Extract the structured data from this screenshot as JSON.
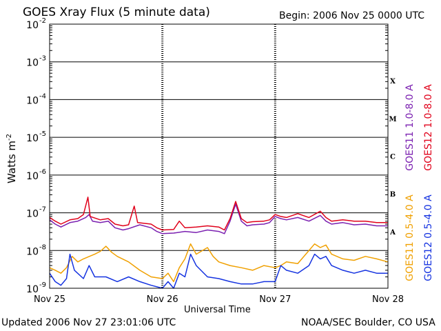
{
  "chart_data": {
    "type": "line",
    "title": "GOES Xray Flux (5 minute data)",
    "begin_label": "Begin:  2006 Nov 25 0000 UTC",
    "xlabel": "Universal Time",
    "ylabel": "Watts m",
    "ylabel_superscript": "-2",
    "y_scale": "log",
    "ylim": [
      1e-09,
      0.01
    ],
    "y_ticks": [
      {
        "base": "10",
        "exp": "-9",
        "value": 1e-09
      },
      {
        "base": "10",
        "exp": "-8",
        "value": 1e-08
      },
      {
        "base": "10",
        "exp": "-7",
        "value": 1e-07
      },
      {
        "base": "10",
        "exp": "-6",
        "value": 1e-06
      },
      {
        "base": "10",
        "exp": "-5",
        "value": 1e-05
      },
      {
        "base": "10",
        "exp": "-4",
        "value": 0.0001
      },
      {
        "base": "10",
        "exp": "-3",
        "value": 0.001
      },
      {
        "base": "10",
        "exp": "-2",
        "value": 0.01
      }
    ],
    "xlim_days": [
      0,
      3
    ],
    "x_ticks": [
      {
        "label": "Nov 25",
        "day": 0
      },
      {
        "label": "Nov 26",
        "day": 1
      },
      {
        "label": "Nov 27",
        "day": 2
      },
      {
        "label": "Nov 28",
        "day": 3
      }
    ],
    "flare_classes": [
      {
        "label": "X",
        "value": 0.000316
      },
      {
        "label": "M",
        "value": 3.16e-05
      },
      {
        "label": "C",
        "value": 3.16e-06
      },
      {
        "label": "B",
        "value": 3.16e-07
      },
      {
        "label": "A",
        "value": 3.16e-08
      }
    ],
    "series": [
      {
        "name": "GOES11 1.0-8.0 A",
        "color": "#7a1fb0",
        "band": "long",
        "points": [
          [
            0.0,
            6.5e-08
          ],
          [
            0.05,
            5e-08
          ],
          [
            0.1,
            4.2e-08
          ],
          [
            0.18,
            5.5e-08
          ],
          [
            0.25,
            6e-08
          ],
          [
            0.32,
            7.5e-08
          ],
          [
            0.35,
            9e-08
          ],
          [
            0.38,
            6e-08
          ],
          [
            0.45,
            5.5e-08
          ],
          [
            0.52,
            6e-08
          ],
          [
            0.58,
            4e-08
          ],
          [
            0.65,
            3.5e-08
          ],
          [
            0.7,
            3.8e-08
          ],
          [
            0.8,
            4.8e-08
          ],
          [
            0.9,
            4e-08
          ],
          [
            0.95,
            3.2e-08
          ],
          [
            1.0,
            2.8e-08
          ],
          [
            1.1,
            2.9e-08
          ],
          [
            1.2,
            3.2e-08
          ],
          [
            1.3,
            3e-08
          ],
          [
            1.4,
            3.5e-08
          ],
          [
            1.5,
            3.2e-08
          ],
          [
            1.55,
            2.8e-08
          ],
          [
            1.6,
            6e-08
          ],
          [
            1.65,
            1.7e-07
          ],
          [
            1.7,
            6e-08
          ],
          [
            1.75,
            4.5e-08
          ],
          [
            1.8,
            4.8e-08
          ],
          [
            1.9,
            5e-08
          ],
          [
            1.95,
            5.5e-08
          ],
          [
            2.0,
            8e-08
          ],
          [
            2.05,
            7e-08
          ],
          [
            2.1,
            6.5e-08
          ],
          [
            2.2,
            7.5e-08
          ],
          [
            2.3,
            6e-08
          ],
          [
            2.4,
            8.5e-08
          ],
          [
            2.45,
            6e-08
          ],
          [
            2.5,
            5e-08
          ],
          [
            2.6,
            5.5e-08
          ],
          [
            2.7,
            4.8e-08
          ],
          [
            2.8,
            5e-08
          ],
          [
            2.9,
            4.5e-08
          ],
          [
            3.0,
            4.5e-08
          ]
        ]
      },
      {
        "name": "GOES12 1.0-8.0 A",
        "color": "#e0001a",
        "band": "long",
        "points": [
          [
            0.0,
            7.5e-08
          ],
          [
            0.05,
            6e-08
          ],
          [
            0.1,
            5e-08
          ],
          [
            0.18,
            6.5e-08
          ],
          [
            0.25,
            7e-08
          ],
          [
            0.3,
            9e-08
          ],
          [
            0.34,
            2.6e-07
          ],
          [
            0.36,
            8e-08
          ],
          [
            0.45,
            6.5e-08
          ],
          [
            0.52,
            7e-08
          ],
          [
            0.58,
            5e-08
          ],
          [
            0.65,
            4.5e-08
          ],
          [
            0.7,
            4.8e-08
          ],
          [
            0.75,
            1.5e-07
          ],
          [
            0.78,
            5.5e-08
          ],
          [
            0.9,
            5e-08
          ],
          [
            0.95,
            4e-08
          ],
          [
            1.0,
            3.5e-08
          ],
          [
            1.1,
            3.6e-08
          ],
          [
            1.15,
            6e-08
          ],
          [
            1.2,
            4e-08
          ],
          [
            1.3,
            4.2e-08
          ],
          [
            1.4,
            4.5e-08
          ],
          [
            1.5,
            4.2e-08
          ],
          [
            1.55,
            3.5e-08
          ],
          [
            1.6,
            7e-08
          ],
          [
            1.65,
            2e-07
          ],
          [
            1.7,
            7e-08
          ],
          [
            1.75,
            5.5e-08
          ],
          [
            1.8,
            5.8e-08
          ],
          [
            1.9,
            6e-08
          ],
          [
            1.95,
            6.5e-08
          ],
          [
            2.0,
            9e-08
          ],
          [
            2.05,
            8e-08
          ],
          [
            2.1,
            7.5e-08
          ],
          [
            2.2,
            9.5e-08
          ],
          [
            2.3,
            7.5e-08
          ],
          [
            2.4,
            1.1e-07
          ],
          [
            2.45,
            7.5e-08
          ],
          [
            2.5,
            6e-08
          ],
          [
            2.6,
            6.5e-08
          ],
          [
            2.7,
            6e-08
          ],
          [
            2.8,
            6e-08
          ],
          [
            2.9,
            5.5e-08
          ],
          [
            3.0,
            5.5e-08
          ]
        ]
      },
      {
        "name": "GOES11 0.5-4.0 A",
        "color": "#f0a000",
        "band": "short",
        "points": [
          [
            0.0,
            3.5e-09
          ],
          [
            0.05,
            3e-09
          ],
          [
            0.1,
            2.5e-09
          ],
          [
            0.15,
            3.5e-09
          ],
          [
            0.2,
            7e-09
          ],
          [
            0.25,
            5e-09
          ],
          [
            0.3,
            6e-09
          ],
          [
            0.4,
            8e-09
          ],
          [
            0.45,
            9.5e-09
          ],
          [
            0.5,
            1.3e-08
          ],
          [
            0.55,
            9e-09
          ],
          [
            0.6,
            7e-09
          ],
          [
            0.7,
            5e-09
          ],
          [
            0.8,
            3e-09
          ],
          [
            0.9,
            2e-09
          ],
          [
            1.0,
            1.8e-09
          ],
          [
            1.05,
            2.5e-09
          ],
          [
            1.1,
            1.5e-09
          ],
          [
            1.15,
            3.5e-09
          ],
          [
            1.2,
            6e-09
          ],
          [
            1.25,
            1.5e-08
          ],
          [
            1.3,
            8e-09
          ],
          [
            1.4,
            1.2e-08
          ],
          [
            1.45,
            7e-09
          ],
          [
            1.5,
            5e-09
          ],
          [
            1.6,
            4e-09
          ],
          [
            1.7,
            3.5e-09
          ],
          [
            1.8,
            3e-09
          ],
          [
            1.9,
            4e-09
          ],
          [
            2.0,
            3.5e-09
          ],
          [
            2.05,
            4e-09
          ],
          [
            2.1,
            5e-09
          ],
          [
            2.2,
            4.5e-09
          ],
          [
            2.3,
            1e-08
          ],
          [
            2.35,
            1.5e-08
          ],
          [
            2.4,
            1.2e-08
          ],
          [
            2.45,
            1.4e-08
          ],
          [
            2.5,
            8e-09
          ],
          [
            2.6,
            6e-09
          ],
          [
            2.7,
            5.5e-09
          ],
          [
            2.8,
            7e-09
          ],
          [
            2.9,
            6e-09
          ],
          [
            3.0,
            5e-09
          ]
        ]
      },
      {
        "name": "GOES12 0.5-4.0 A",
        "color": "#1432e0",
        "band": "short",
        "points": [
          [
            0.0,
            2.5e-09
          ],
          [
            0.05,
            1.5e-09
          ],
          [
            0.1,
            1.2e-09
          ],
          [
            0.15,
            1.8e-09
          ],
          [
            0.18,
            8e-09
          ],
          [
            0.22,
            3e-09
          ],
          [
            0.3,
            1.8e-09
          ],
          [
            0.35,
            4e-09
          ],
          [
            0.4,
            2e-09
          ],
          [
            0.5,
            2e-09
          ],
          [
            0.6,
            1.5e-09
          ],
          [
            0.7,
            2e-09
          ],
          [
            0.8,
            1.5e-09
          ],
          [
            0.9,
            1.2e-09
          ],
          [
            1.0,
            1e-09
          ],
          [
            1.05,
            1.5e-09
          ],
          [
            1.1,
            1e-09
          ],
          [
            1.15,
            2.5e-09
          ],
          [
            1.2,
            2e-09
          ],
          [
            1.25,
            8e-09
          ],
          [
            1.3,
            4e-09
          ],
          [
            1.4,
            2e-09
          ],
          [
            1.5,
            1.8e-09
          ],
          [
            1.6,
            1.5e-09
          ],
          [
            1.7,
            1.3e-09
          ],
          [
            1.8,
            1.3e-09
          ],
          [
            1.9,
            1.5e-09
          ],
          [
            2.0,
            1.5e-09
          ],
          [
            2.05,
            4e-09
          ],
          [
            2.1,
            3e-09
          ],
          [
            2.2,
            2.5e-09
          ],
          [
            2.3,
            4e-09
          ],
          [
            2.35,
            8e-09
          ],
          [
            2.4,
            6e-09
          ],
          [
            2.45,
            7e-09
          ],
          [
            2.5,
            4e-09
          ],
          [
            2.6,
            3e-09
          ],
          [
            2.7,
            2.5e-09
          ],
          [
            2.8,
            3e-09
          ],
          [
            2.9,
            2.5e-09
          ],
          [
            3.0,
            2.5e-09
          ]
        ]
      }
    ],
    "grid": true
  },
  "footer": {
    "updated": "Updated 2006 Nov 27 23:01:06 UTC",
    "credit": "NOAA/SEC Boulder, CO USA"
  }
}
